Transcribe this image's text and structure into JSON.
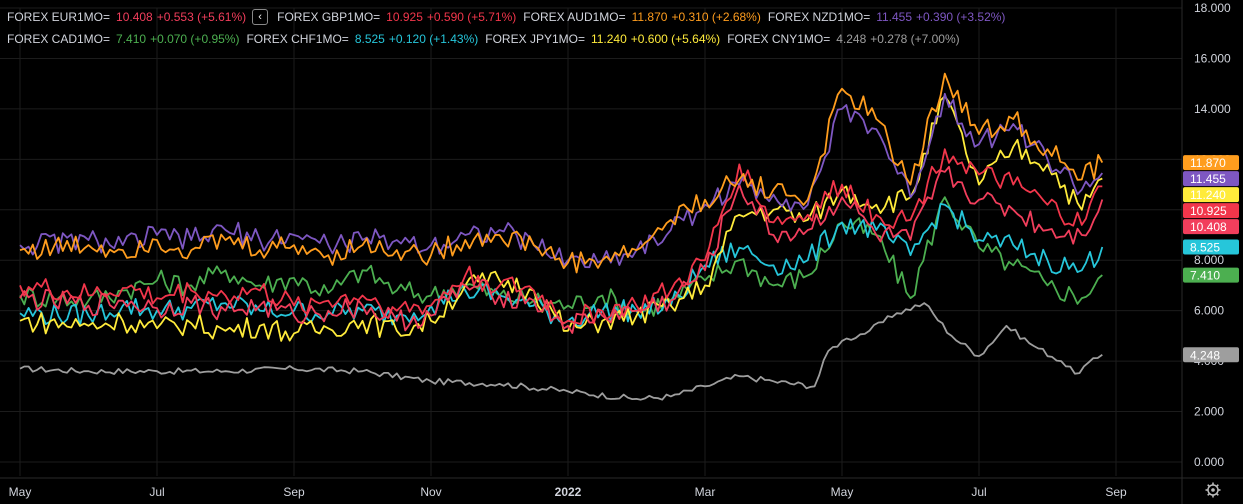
{
  "legend": {
    "collapse_icon": "chevron-left-icon",
    "rows": [
      [
        {
          "name": "FOREX EUR1MO=",
          "value": "10.408",
          "change": "+0.553 (+5.61%)",
          "color": "#f23e5c"
        },
        {
          "name": "FOREX GBP1MO=",
          "value": "10.925",
          "change": "+0.590 (+5.71%)",
          "color": "#f2364b"
        },
        {
          "name": "FOREX AUD1MO=",
          "value": "11.870",
          "change": "+0.310 (+2.68%)",
          "color": "#ff9d1e"
        },
        {
          "name": "FOREX NZD1MO=",
          "value": "11.455",
          "change": "+0.390 (+3.52%)",
          "color": "#7e57c2"
        }
      ],
      [
        {
          "name": "FOREX CAD1MO=",
          "value": "7.410",
          "change": "+0.070 (+0.95%)",
          "color": "#4caf50"
        },
        {
          "name": "FOREX CHF1MO=",
          "value": "8.525",
          "change": "+0.120 (+1.43%)",
          "color": "#26c6da"
        },
        {
          "name": "FOREX JPY1MO=",
          "value": "11.240",
          "change": "+0.600 (+5.64%)",
          "color": "#ffeb3b"
        },
        {
          "name": "FOREX CNY1MO=",
          "value": "4.248",
          "change": "+0.278 (+7.00%)",
          "color": "#9e9e9e"
        }
      ]
    ]
  },
  "settings_icon": "gear-icon",
  "chart_data": {
    "type": "line",
    "ylim": [
      0,
      18
    ],
    "y_ticks": [
      "0.000",
      "2.000",
      "4.000",
      "6.000",
      "8.000",
      "10.000",
      "12.000",
      "14.000",
      "16.000",
      "18.000"
    ],
    "x_ticks": [
      {
        "label": "May",
        "x": 0.0
      },
      {
        "label": "Jul",
        "x": 2.0
      },
      {
        "label": "Sep",
        "x": 4.0
      },
      {
        "label": "Nov",
        "x": 6.0
      },
      {
        "label": "2022",
        "x": 8.0,
        "bold": true
      },
      {
        "label": "Mar",
        "x": 10.0
      },
      {
        "label": "May",
        "x": 12.0
      },
      {
        "label": "Jul",
        "x": 14.0
      },
      {
        "label": "Sep",
        "x": 16.0
      }
    ],
    "xlim": [
      0,
      17.5
    ],
    "series": [
      {
        "name": "FOREX CNY1MO=",
        "color": "#9e9e9e",
        "last": "4.248",
        "x": [
          0,
          1,
          2,
          3,
          4,
          5,
          6,
          7,
          8,
          9,
          9.5,
          10,
          10.5,
          11,
          11.6,
          11.8,
          12,
          12.4,
          12.8,
          13.2,
          13.6,
          14,
          14.4,
          14.8,
          15.2,
          15.4,
          15.8
        ],
        "values": [
          3.7,
          3.6,
          3.6,
          3.6,
          3.7,
          3.6,
          3.2,
          3.1,
          2.8,
          2.5,
          2.6,
          3.0,
          3.4,
          3.2,
          3.0,
          4.4,
          4.8,
          5.2,
          5.9,
          6.3,
          5.0,
          4.2,
          5.4,
          4.6,
          4.0,
          3.5,
          4.25
        ]
      },
      {
        "name": "FOREX CAD1MO=",
        "color": "#4caf50",
        "last": "7.410",
        "x": [
          0,
          1,
          1.5,
          2,
          2.5,
          3,
          3.5,
          4,
          4.5,
          5,
          5.5,
          6,
          6.5,
          7,
          7.5,
          8,
          8.5,
          9,
          9.5,
          10,
          10.5,
          11,
          11.5,
          12,
          12.5,
          13,
          13.5,
          14,
          14.5,
          15,
          15.5,
          15.8
        ],
        "values": [
          6.6,
          6.4,
          6.8,
          7.2,
          7.0,
          7.6,
          7.0,
          7.3,
          6.7,
          7.6,
          6.8,
          6.6,
          7.0,
          6.6,
          6.4,
          6.2,
          6.6,
          6.0,
          6.4,
          7.2,
          8.0,
          7.0,
          7.4,
          9.5,
          9.0,
          6.5,
          10.5,
          8.5,
          7.8,
          7.0,
          6.5,
          7.41
        ]
      },
      {
        "name": "FOREX CHF1MO=",
        "color": "#26c6da",
        "last": "8.525",
        "x": [
          0,
          1,
          1.5,
          2,
          2.5,
          3,
          3.5,
          4,
          4.5,
          5,
          5.5,
          6,
          6.5,
          7,
          7.5,
          8,
          8.5,
          9,
          9.5,
          10,
          10.5,
          11,
          11.5,
          12,
          12.5,
          13,
          13.5,
          14,
          14.5,
          15,
          15.5,
          15.8
        ],
        "values": [
          5.9,
          5.8,
          6.2,
          6.0,
          6.1,
          6.3,
          6.0,
          6.0,
          5.9,
          6.0,
          5.8,
          6.2,
          6.8,
          6.6,
          6.2,
          5.6,
          6.0,
          6.0,
          6.2,
          7.8,
          8.5,
          7.8,
          8.0,
          9.5,
          9.2,
          8.2,
          10.2,
          8.8,
          8.6,
          8.0,
          7.6,
          8.525
        ]
      },
      {
        "name": "FOREX JPY1MO=",
        "color": "#ffeb3b",
        "last": "11.240",
        "x": [
          0,
          1,
          1.5,
          2,
          2.5,
          3,
          3.5,
          4,
          4.5,
          5,
          5.5,
          6,
          6.5,
          7,
          7.5,
          8,
          8.5,
          9,
          9.5,
          10,
          10.5,
          11,
          11.5,
          12,
          12.5,
          13,
          13.5,
          14,
          14.5,
          15,
          15.5,
          15.8
        ],
        "values": [
          5.6,
          5.4,
          5.6,
          5.3,
          5.5,
          5.2,
          5.4,
          5.1,
          5.3,
          5.6,
          5.2,
          5.6,
          7.0,
          7.2,
          6.8,
          5.2,
          5.6,
          5.8,
          6.2,
          7.0,
          9.8,
          10.0,
          9.6,
          10.8,
          10.2,
          10.5,
          14.5,
          11.0,
          12.5,
          11.8,
          10.0,
          11.24
        ]
      },
      {
        "name": "FOREX EUR1MO=",
        "color": "#f23e5c",
        "last": "10.408",
        "x": [
          0,
          1,
          1.5,
          2,
          2.5,
          3,
          3.5,
          4,
          4.5,
          5,
          5.5,
          6,
          6.5,
          7,
          7.5,
          8,
          8.5,
          9,
          9.5,
          10,
          10.5,
          11,
          11.5,
          12,
          12.5,
          13,
          13.5,
          14,
          14.5,
          15,
          15.5,
          15.8
        ],
        "values": [
          6.5,
          6.2,
          6.4,
          6.1,
          6.3,
          6.0,
          6.2,
          5.8,
          6.0,
          6.2,
          5.6,
          5.8,
          7.0,
          6.6,
          6.4,
          5.4,
          5.8,
          6.0,
          6.4,
          7.6,
          11.0,
          9.0,
          9.2,
          10.5,
          9.0,
          8.8,
          11.5,
          10.4,
          10.0,
          9.2,
          9.0,
          10.408
        ]
      },
      {
        "name": "FOREX GBP1MO=",
        "color": "#f2364b",
        "last": "10.925",
        "x": [
          0,
          1,
          1.5,
          2,
          2.5,
          3,
          3.5,
          4,
          4.5,
          5,
          5.5,
          6,
          6.5,
          7,
          7.5,
          8,
          8.5,
          9,
          9.5,
          10,
          10.5,
          11,
          11.5,
          12,
          12.5,
          13,
          13.5,
          14,
          14.5,
          15,
          15.5,
          15.8
        ],
        "values": [
          7.0,
          6.6,
          6.9,
          6.5,
          6.8,
          6.6,
          6.8,
          6.2,
          6.4,
          6.6,
          6.0,
          6.2,
          7.4,
          7.0,
          6.8,
          5.6,
          6.0,
          6.2,
          6.8,
          8.0,
          11.8,
          9.5,
          9.8,
          11.0,
          9.8,
          9.6,
          12.4,
          11.4,
          11.0,
          10.2,
          9.4,
          10.925
        ]
      },
      {
        "name": "FOREX NZD1MO=",
        "color": "#7e57c2",
        "last": "11.455",
        "x": [
          0,
          1,
          1.5,
          2,
          2.5,
          3,
          3.5,
          4,
          4.5,
          5,
          5.5,
          6,
          6.5,
          7,
          7.5,
          8,
          8.5,
          9,
          9.5,
          10,
          10.5,
          11,
          11.5,
          12,
          12.5,
          13,
          13.5,
          14,
          14.5,
          15,
          15.5,
          15.8
        ],
        "values": [
          8.6,
          8.8,
          8.6,
          9.0,
          8.8,
          9.2,
          8.8,
          9.0,
          8.6,
          8.8,
          8.8,
          8.6,
          9.0,
          9.2,
          8.6,
          8.0,
          8.0,
          8.4,
          9.2,
          10.2,
          11.0,
          10.6,
          10.2,
          14.0,
          13.2,
          10.5,
          14.6,
          12.6,
          13.4,
          12.0,
          10.8,
          11.455
        ]
      },
      {
        "name": "FOREX AUD1MO=",
        "color": "#ff9d1e",
        "last": "11.870",
        "x": [
          0,
          1,
          1.5,
          2,
          2.5,
          3,
          3.5,
          4,
          4.5,
          5,
          5.5,
          6,
          6.5,
          7,
          7.5,
          8,
          8.5,
          9,
          9.5,
          10,
          10.5,
          11,
          11.5,
          12,
          12.5,
          13,
          13.5,
          14,
          14.5,
          15,
          15.5,
          15.8
        ],
        "values": [
          8.4,
          8.6,
          8.4,
          8.8,
          8.4,
          8.8,
          8.4,
          8.6,
          8.2,
          8.6,
          8.4,
          8.2,
          8.8,
          9.0,
          8.6,
          7.9,
          8.0,
          8.4,
          9.6,
          10.4,
          11.2,
          10.8,
          10.4,
          14.8,
          13.6,
          11.0,
          15.4,
          13.0,
          13.6,
          12.4,
          11.2,
          11.87
        ]
      }
    ]
  }
}
